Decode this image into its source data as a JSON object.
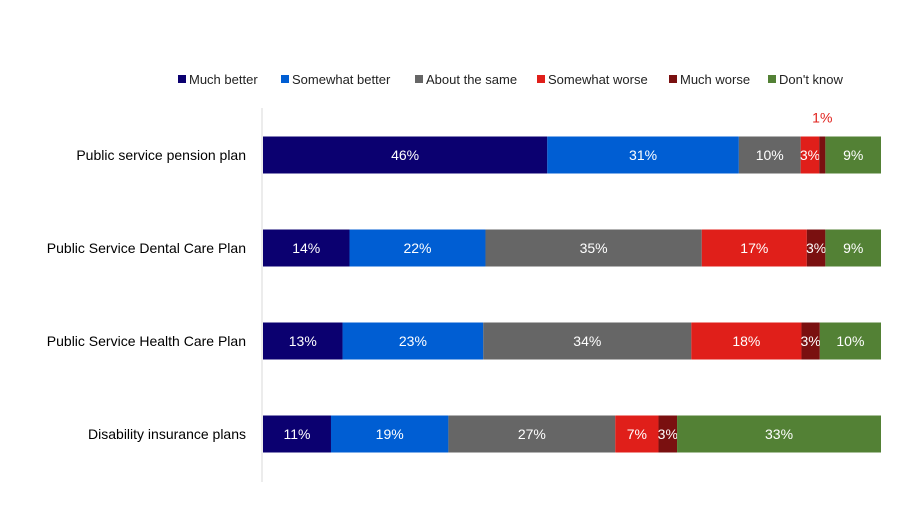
{
  "chart_data": {
    "type": "bar",
    "orientation": "horizontal",
    "stacked": true,
    "title": "",
    "xlabel": "",
    "ylabel": "",
    "xlim": [
      0,
      100
    ],
    "grid": false,
    "legend_position": "top",
    "categories": [
      "Public service pension plan",
      "Public Service Dental Care Plan",
      "Public Service Health Care Plan",
      "Disability insurance plans"
    ],
    "series": [
      {
        "name": "Much better",
        "color": "#0b0070",
        "values": [
          46,
          14,
          13,
          11
        ]
      },
      {
        "name": "Somewhat better",
        "color": "#005ed3",
        "values": [
          31,
          22,
          23,
          19
        ]
      },
      {
        "name": "About the same",
        "color": "#666666",
        "values": [
          10,
          35,
          34,
          27
        ]
      },
      {
        "name": "Somewhat worse",
        "color": "#e01f1a",
        "values": [
          3,
          17,
          18,
          7
        ]
      },
      {
        "name": "Much worse",
        "color": "#7a1010",
        "values": [
          1,
          3,
          3,
          3
        ]
      },
      {
        "name": "Don't know",
        "color": "#538135",
        "values": [
          9,
          9,
          10,
          33
        ]
      }
    ],
    "value_format": "{v}%",
    "annotations": [
      {
        "text": "1%",
        "category": "Public service pension plan",
        "series": "Much worse",
        "color": "#e01f1a",
        "placement": "above"
      }
    ]
  }
}
